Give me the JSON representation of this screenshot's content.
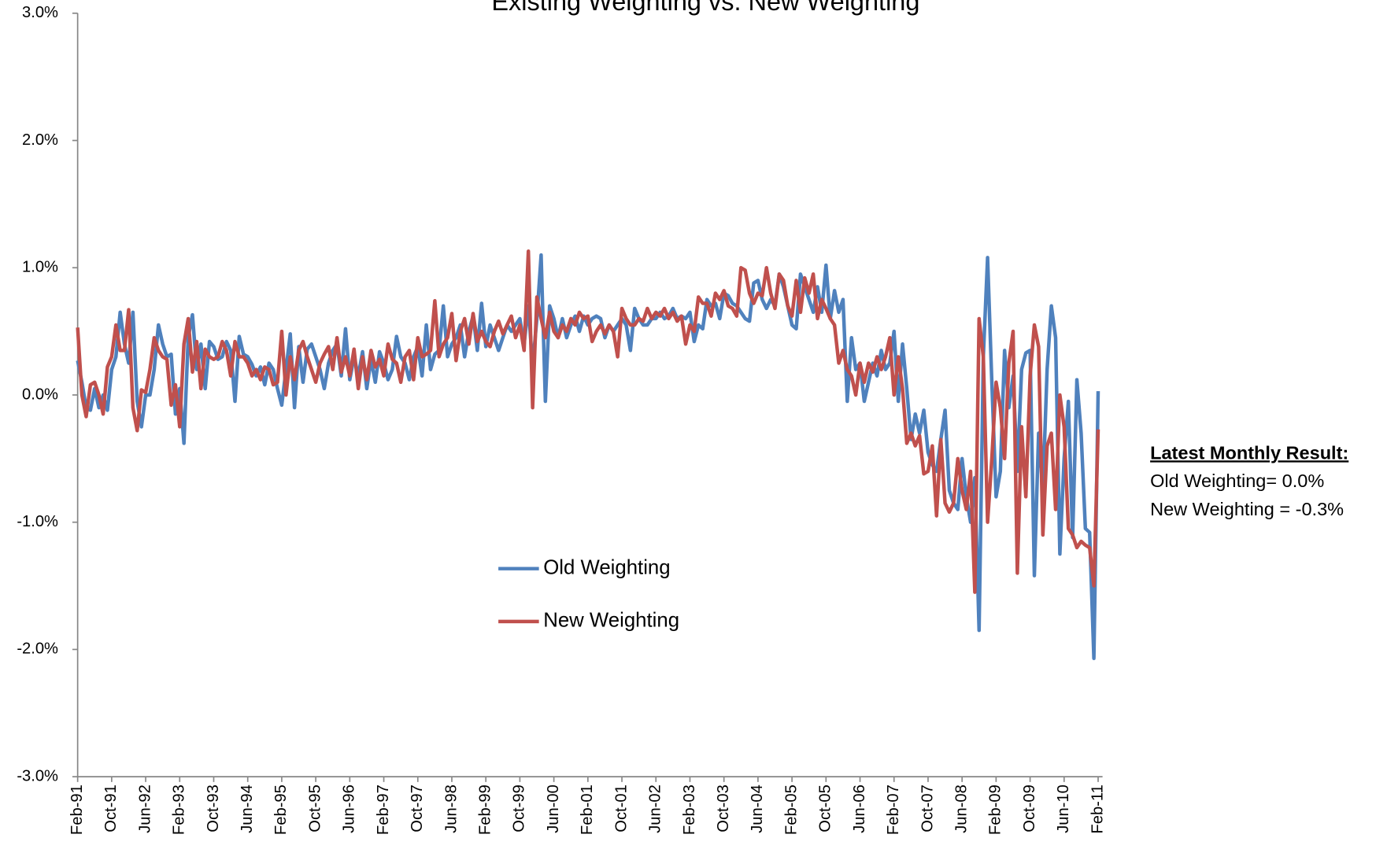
{
  "chart_data": {
    "type": "line",
    "title": "Existing Weighting vs. New Weighting",
    "categories": [
      "Feb-91",
      null,
      null,
      null,
      null,
      null,
      null,
      null,
      "Oct-91",
      null,
      null,
      null,
      null,
      null,
      null,
      null,
      "Jun-92",
      null,
      null,
      null,
      null,
      null,
      null,
      null,
      "Feb-93",
      null,
      null,
      null,
      null,
      null,
      null,
      null,
      "Oct-93",
      null,
      null,
      null,
      null,
      null,
      null,
      null,
      "Jun-94",
      null,
      null,
      null,
      null,
      null,
      null,
      null,
      "Feb-95",
      null,
      null,
      null,
      null,
      null,
      null,
      null,
      "Oct-95",
      null,
      null,
      null,
      null,
      null,
      null,
      null,
      "Jun-96",
      null,
      null,
      null,
      null,
      null,
      null,
      null,
      "Feb-97",
      null,
      null,
      null,
      null,
      null,
      null,
      null,
      "Oct-97",
      null,
      null,
      null,
      null,
      null,
      null,
      null,
      "Jun-98",
      null,
      null,
      null,
      null,
      null,
      null,
      null,
      "Feb-99",
      null,
      null,
      null,
      null,
      null,
      null,
      null,
      "Oct-99",
      null,
      null,
      null,
      null,
      null,
      null,
      null,
      "Jun-00",
      null,
      null,
      null,
      null,
      null,
      null,
      null,
      "Feb-01",
      null,
      null,
      null,
      null,
      null,
      null,
      null,
      "Oct-01",
      null,
      null,
      null,
      null,
      null,
      null,
      null,
      "Jun-02",
      null,
      null,
      null,
      null,
      null,
      null,
      null,
      "Feb-03",
      null,
      null,
      null,
      null,
      null,
      null,
      null,
      "Oct-03",
      null,
      null,
      null,
      null,
      null,
      null,
      null,
      "Jun-04",
      null,
      null,
      null,
      null,
      null,
      null,
      null,
      "Feb-05",
      null,
      null,
      null,
      null,
      null,
      null,
      null,
      "Oct-05",
      null,
      null,
      null,
      null,
      null,
      null,
      null,
      "Jun-06",
      null,
      null,
      null,
      null,
      null,
      null,
      null,
      "Feb-07",
      null,
      null,
      null,
      null,
      null,
      null,
      null,
      "Oct-07",
      null,
      null,
      null,
      null,
      null,
      null,
      null,
      "Jun-08",
      null,
      null,
      null,
      null,
      null,
      null,
      null,
      "Feb-09",
      null,
      null,
      null,
      null,
      null,
      null,
      null,
      "Oct-09",
      null,
      null,
      null,
      null,
      null,
      null,
      null,
      "Jun-10",
      null,
      null,
      null,
      null,
      null,
      null,
      null,
      "Feb-11"
    ],
    "series": [
      {
        "name": "Old Weighting",
        "color": "#4f81bd",
        "values": [
          0.27,
          0.1,
          -0.1,
          -0.12,
          0.05,
          -0.1,
          0.0,
          -0.12,
          0.2,
          0.3,
          0.65,
          0.4,
          0.25,
          0.65,
          -0.05,
          -0.25,
          0.0,
          0.0,
          0.2,
          0.55,
          0.4,
          0.3,
          0.32,
          -0.15,
          0.05,
          -0.38,
          0.45,
          0.63,
          0.2,
          0.4,
          0.05,
          0.42,
          0.38,
          0.28,
          0.3,
          0.42,
          0.35,
          -0.05,
          0.46,
          0.32,
          0.3,
          0.24,
          0.15,
          0.22,
          0.08,
          0.25,
          0.2,
          0.05,
          -0.08,
          0.2,
          0.48,
          -0.1,
          0.38,
          0.1,
          0.36,
          0.4,
          0.3,
          0.2,
          0.05,
          0.25,
          0.35,
          0.4,
          0.15,
          0.52,
          0.12,
          0.3,
          0.15,
          0.34,
          0.05,
          0.28,
          0.1,
          0.34,
          0.25,
          0.12,
          0.2,
          0.46,
          0.3,
          0.25,
          0.12,
          0.3,
          0.38,
          0.15,
          0.55,
          0.2,
          0.32,
          0.35,
          0.7,
          0.3,
          0.4,
          0.45,
          0.55,
          0.3,
          0.5,
          0.62,
          0.35,
          0.72,
          0.38,
          0.55,
          0.45,
          0.35,
          0.45,
          0.55,
          0.5,
          0.55,
          0.6,
          0.4,
          0.7,
          0.22,
          0.6,
          1.1,
          -0.05,
          0.7,
          0.6,
          0.45,
          0.6,
          0.45,
          0.55,
          0.62,
          0.5,
          0.62,
          0.55,
          0.6,
          0.62,
          0.6,
          0.45,
          0.55,
          0.5,
          0.55,
          0.6,
          0.55,
          0.35,
          0.68,
          0.6,
          0.55,
          0.55,
          0.6,
          0.6,
          0.65,
          0.6,
          0.62,
          0.68,
          0.6,
          0.62,
          0.6,
          0.65,
          0.42,
          0.55,
          0.52,
          0.75,
          0.7,
          0.72,
          0.6,
          0.8,
          0.78,
          0.72,
          0.7,
          0.65,
          0.6,
          0.58,
          0.88,
          0.9,
          0.75,
          0.68,
          0.75,
          0.7,
          0.95,
          0.85,
          0.7,
          0.55,
          0.52,
          0.95,
          0.85,
          0.75,
          0.65,
          0.85,
          0.65,
          1.02,
          0.6,
          0.82,
          0.65,
          0.75,
          -0.05,
          0.45,
          0.2,
          0.25,
          -0.05,
          0.1,
          0.25,
          0.15,
          0.35,
          0.2,
          0.25,
          0.5,
          -0.05,
          0.4,
          0.05,
          -0.35,
          -0.15,
          -0.3,
          -0.12,
          -0.45,
          -0.55,
          -0.6,
          -0.35,
          -0.12,
          -0.75,
          -0.85,
          -0.9,
          -0.5,
          -0.8,
          -1.0,
          -0.65,
          -1.85,
          0.3,
          1.08,
          0.1,
          -0.8,
          -0.6,
          0.35,
          -0.1,
          0.15,
          -0.6,
          0.2,
          0.33,
          0.35,
          -1.42,
          -0.3,
          -0.75,
          0.2,
          0.7,
          0.45,
          -1.25,
          -0.5,
          -0.05,
          -1.12,
          0.12,
          -0.3,
          -1.05,
          -1.08,
          -2.07,
          0.03
        ]
      },
      {
        "name": "New Weighting",
        "color": "#c0504d",
        "values": [
          0.53,
          0.0,
          -0.17,
          0.08,
          0.1,
          0.0,
          -0.15,
          0.22,
          0.3,
          0.55,
          0.35,
          0.35,
          0.67,
          -0.1,
          -0.28,
          0.04,
          0.02,
          0.2,
          0.45,
          0.35,
          0.3,
          0.28,
          -0.08,
          0.08,
          -0.25,
          0.4,
          0.6,
          0.18,
          0.42,
          0.05,
          0.36,
          0.3,
          0.28,
          0.3,
          0.42,
          0.35,
          0.15,
          0.42,
          0.3,
          0.3,
          0.25,
          0.15,
          0.2,
          0.12,
          0.22,
          0.2,
          0.08,
          0.1,
          0.5,
          0.0,
          0.3,
          0.12,
          0.35,
          0.42,
          0.3,
          0.2,
          0.1,
          0.25,
          0.32,
          0.38,
          0.2,
          0.45,
          0.18,
          0.3,
          0.15,
          0.36,
          0.05,
          0.3,
          0.12,
          0.35,
          0.22,
          0.28,
          0.15,
          0.4,
          0.28,
          0.25,
          0.1,
          0.3,
          0.35,
          0.12,
          0.45,
          0.3,
          0.32,
          0.35,
          0.74,
          0.3,
          0.4,
          0.45,
          0.64,
          0.27,
          0.5,
          0.6,
          0.4,
          0.64,
          0.42,
          0.5,
          0.42,
          0.38,
          0.5,
          0.58,
          0.48,
          0.55,
          0.62,
          0.45,
          0.55,
          0.35,
          1.13,
          -0.1,
          0.77,
          0.6,
          0.45,
          0.65,
          0.5,
          0.45,
          0.55,
          0.5,
          0.6,
          0.55,
          0.65,
          0.6,
          0.62,
          0.42,
          0.5,
          0.55,
          0.48,
          0.55,
          0.5,
          0.3,
          0.68,
          0.6,
          0.55,
          0.55,
          0.6,
          0.58,
          0.68,
          0.6,
          0.65,
          0.62,
          0.68,
          0.6,
          0.65,
          0.58,
          0.62,
          0.4,
          0.55,
          0.5,
          0.77,
          0.72,
          0.72,
          0.62,
          0.8,
          0.75,
          0.82,
          0.7,
          0.68,
          0.62,
          1.0,
          0.98,
          0.8,
          0.72,
          0.8,
          0.78,
          1.0,
          0.8,
          0.68,
          0.95,
          0.9,
          0.7,
          0.62,
          0.9,
          0.65,
          0.92,
          0.8,
          0.95,
          0.6,
          0.75,
          0.68,
          0.6,
          0.55,
          0.25,
          0.35,
          0.2,
          0.15,
          0.0,
          0.25,
          0.1,
          0.25,
          0.18,
          0.3,
          0.2,
          0.3,
          0.45,
          0.0,
          0.3,
          0.05,
          -0.38,
          -0.3,
          -0.4,
          -0.32,
          -0.62,
          -0.6,
          -0.4,
          -0.95,
          -0.35,
          -0.85,
          -0.92,
          -0.85,
          -0.5,
          -0.75,
          -0.9,
          -0.6,
          -1.55,
          0.6,
          0.3,
          -1.0,
          -0.5,
          0.1,
          -0.1,
          -0.5,
          0.25,
          0.5,
          -1.4,
          -0.25,
          -0.8,
          0.15,
          0.55,
          0.38,
          -1.1,
          -0.4,
          -0.3,
          -0.9,
          0.0,
          -0.25,
          -1.05,
          -1.1,
          -1.2,
          -1.15,
          -1.18,
          -1.2,
          -1.5,
          -0.27
        ]
      }
    ],
    "ylim": [
      -3,
      3
    ],
    "yticks": [
      {
        "value": -3,
        "label": "-3.0%"
      },
      {
        "value": -2,
        "label": "-2.0%"
      },
      {
        "value": -1,
        "label": "-1.0%"
      },
      {
        "value": 0,
        "label": "0.0%"
      },
      {
        "value": 1,
        "label": "1.0%"
      },
      {
        "value": 2,
        "label": "2.0%"
      },
      {
        "value": 3,
        "label": "3.0%"
      }
    ],
    "grid": false,
    "legend": "center",
    "annotation": {
      "heading": "Latest Monthly Result:",
      "lines": [
        "Old Weighting= 0.0%",
        "New Weighting = -0.3%"
      ]
    }
  }
}
